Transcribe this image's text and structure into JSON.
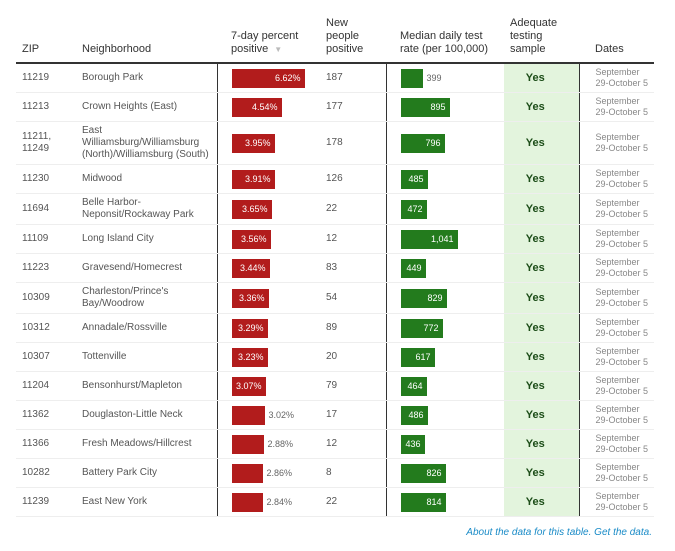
{
  "headers": {
    "zip": "ZIP",
    "neighborhood": "Neighborhood",
    "percent_positive": "7-day percent positive",
    "new_positive": "New people positive",
    "test_rate": "Median daily test rate (per 100,000)",
    "adequate": "Adequate testing sample",
    "dates": "Dates"
  },
  "sort_icon": "triangle-down",
  "colors": {
    "percent_bar": "#b21c1c",
    "test_rate_bar": "#237b1d",
    "adequate_bg": "#e3f4dd",
    "link": "#1a8bc7"
  },
  "rows": [
    {
      "zip": "11219",
      "neighborhood": "Borough Park",
      "percent": "6.62%",
      "pct": 6.62,
      "new": "187",
      "rate": "399",
      "rate_val": 399,
      "adequate": "Yes",
      "dates": "September 29-October 5"
    },
    {
      "zip": "11213",
      "neighborhood": "Crown Heights (East)",
      "percent": "4.54%",
      "pct": 4.54,
      "new": "177",
      "rate": "895",
      "rate_val": 895,
      "adequate": "Yes",
      "dates": "September 29-October 5"
    },
    {
      "zip": "11211, 11249",
      "neighborhood": "East Williamsburg/Williamsburg (North)/Williamsburg (South)",
      "percent": "3.95%",
      "pct": 3.95,
      "new": "178",
      "rate": "796",
      "rate_val": 796,
      "adequate": "Yes",
      "dates": "September 29-October 5"
    },
    {
      "zip": "11230",
      "neighborhood": "Midwood",
      "percent": "3.91%",
      "pct": 3.91,
      "new": "126",
      "rate": "485",
      "rate_val": 485,
      "adequate": "Yes",
      "dates": "September 29-October 5"
    },
    {
      "zip": "11694",
      "neighborhood": "Belle Harbor-Neponsit/Rockaway Park",
      "percent": "3.65%",
      "pct": 3.65,
      "new": "22",
      "rate": "472",
      "rate_val": 472,
      "adequate": "Yes",
      "dates": "September 29-October 5"
    },
    {
      "zip": "11109",
      "neighborhood": "Long Island City",
      "percent": "3.56%",
      "pct": 3.56,
      "new": "12",
      "rate": "1,041",
      "rate_val": 1041,
      "adequate": "Yes",
      "dates": "September 29-October 5"
    },
    {
      "zip": "11223",
      "neighborhood": "Gravesend/Homecrest",
      "percent": "3.44%",
      "pct": 3.44,
      "new": "83",
      "rate": "449",
      "rate_val": 449,
      "adequate": "Yes",
      "dates": "September 29-October 5"
    },
    {
      "zip": "10309",
      "neighborhood": "Charleston/Prince's Bay/Woodrow",
      "percent": "3.36%",
      "pct": 3.36,
      "new": "54",
      "rate": "829",
      "rate_val": 829,
      "adequate": "Yes",
      "dates": "September 29-October 5"
    },
    {
      "zip": "10312",
      "neighborhood": "Annadale/Rossville",
      "percent": "3.29%",
      "pct": 3.29,
      "new": "89",
      "rate": "772",
      "rate_val": 772,
      "adequate": "Yes",
      "dates": "September 29-October 5"
    },
    {
      "zip": "10307",
      "neighborhood": "Tottenville",
      "percent": "3.23%",
      "pct": 3.23,
      "new": "20",
      "rate": "617",
      "rate_val": 617,
      "adequate": "Yes",
      "dates": "September 29-October 5"
    },
    {
      "zip": "11204",
      "neighborhood": "Bensonhurst/Mapleton",
      "percent": "3.07%",
      "pct": 3.07,
      "new": "79",
      "rate": "464",
      "rate_val": 464,
      "adequate": "Yes",
      "dates": "September 29-October 5"
    },
    {
      "zip": "11362",
      "neighborhood": "Douglaston-Little Neck",
      "percent": "3.02%",
      "pct": 3.02,
      "new": "17",
      "rate": "486",
      "rate_val": 486,
      "adequate": "Yes",
      "dates": "September 29-October 5"
    },
    {
      "zip": "11366",
      "neighborhood": "Fresh Meadows/Hillcrest",
      "percent": "2.88%",
      "pct": 2.88,
      "new": "12",
      "rate": "436",
      "rate_val": 436,
      "adequate": "Yes",
      "dates": "September 29-October 5"
    },
    {
      "zip": "10282",
      "neighborhood": "Battery Park City",
      "percent": "2.86%",
      "pct": 2.86,
      "new": "8",
      "rate": "826",
      "rate_val": 826,
      "adequate": "Yes",
      "dates": "September 29-October 5"
    },
    {
      "zip": "11239",
      "neighborhood": "East New York",
      "percent": "2.84%",
      "pct": 2.84,
      "new": "22",
      "rate": "814",
      "rate_val": 814,
      "adequate": "Yes",
      "dates": "September 29-October 5"
    }
  ],
  "footer": {
    "about_link": "About the data for this table.",
    "get_link": "Get the data."
  }
}
